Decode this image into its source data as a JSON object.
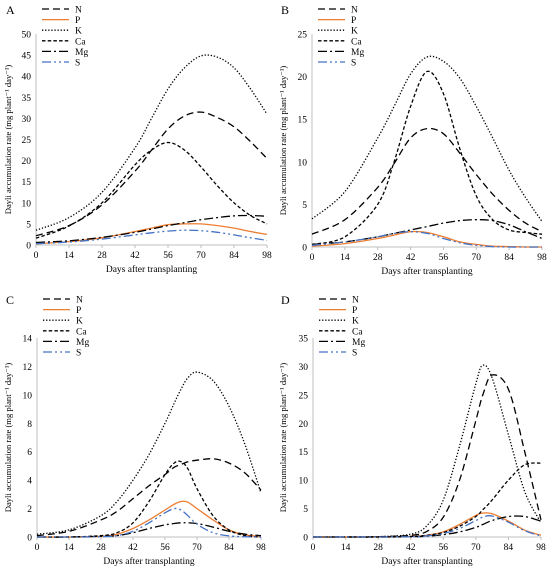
{
  "chart_data": [
    {
      "type": "line",
      "panel": "A",
      "xlabel": "Days after transplanting",
      "ylabel": "Dayli accumulation rate (mg plant⁻¹ day⁻¹)",
      "xlim": [
        0,
        98
      ],
      "ylim": [
        0,
        50
      ],
      "xticks": [
        0,
        14,
        28,
        42,
        56,
        70,
        84,
        98
      ],
      "yticks": [
        0,
        5,
        10,
        15,
        20,
        25,
        30,
        35,
        40,
        45,
        50
      ],
      "legend": "top-left",
      "x": [
        0,
        14,
        28,
        42,
        49,
        56,
        63,
        70,
        77,
        84,
        91,
        98
      ],
      "series": [
        {
          "name": "N",
          "values": [
            2.2,
            4.6,
            9.5,
            17.5,
            22.5,
            27.5,
            30.6,
            31.5,
            30.2,
            28.0,
            24.5,
            20.5
          ]
        },
        {
          "name": "P",
          "values": [
            0.3,
            0.8,
            1.7,
            3.2,
            4.0,
            4.8,
            5.0,
            5.0,
            4.6,
            4.0,
            3.2,
            2.5
          ]
        },
        {
          "name": "K",
          "values": [
            3.5,
            6.5,
            12.5,
            23.0,
            30.0,
            37.0,
            42.0,
            44.8,
            44.5,
            42.0,
            37.0,
            31.0
          ]
        },
        {
          "name": "Ca",
          "values": [
            1.6,
            4.5,
            10.0,
            19.0,
            22.5,
            24.3,
            22.5,
            18.5,
            14.0,
            10.0,
            7.0,
            5.0
          ]
        },
        {
          "name": "Mg",
          "values": [
            0.6,
            1.0,
            1.8,
            3.0,
            3.8,
            4.6,
            5.3,
            6.0,
            6.5,
            6.9,
            7.0,
            6.8
          ]
        },
        {
          "name": "S",
          "values": [
            0.3,
            0.7,
            1.4,
            2.4,
            2.9,
            3.3,
            3.5,
            3.4,
            3.0,
            2.4,
            1.7,
            1.1
          ]
        }
      ]
    },
    {
      "type": "line",
      "panel": "B",
      "xlabel": "Days after transplanting",
      "ylabel": "Dayli accumulation rate (mg plant⁻¹ day⁻¹)",
      "xlim": [
        0,
        98
      ],
      "ylim": [
        0,
        25
      ],
      "xticks": [
        0,
        14,
        28,
        42,
        56,
        70,
        84,
        98
      ],
      "yticks": [
        0,
        5,
        10,
        15,
        20,
        25
      ],
      "legend": "top-left",
      "x": [
        0,
        14,
        28,
        35,
        42,
        49,
        56,
        63,
        70,
        77,
        84,
        91,
        98
      ],
      "series": [
        {
          "name": "N",
          "values": [
            1.5,
            3.2,
            7.0,
            9.8,
            12.8,
            13.9,
            13.3,
            11.0,
            8.5,
            6.2,
            4.3,
            2.8,
            1.8
          ]
        },
        {
          "name": "P",
          "values": [
            0.1,
            0.4,
            1.0,
            1.4,
            1.8,
            1.7,
            1.2,
            0.6,
            0.3,
            0.1,
            0.05,
            0.0,
            0.0
          ]
        },
        {
          "name": "K",
          "values": [
            3.3,
            6.5,
            12.8,
            16.5,
            20.3,
            22.3,
            21.8,
            19.8,
            16.5,
            12.8,
            9.0,
            5.8,
            3.0
          ]
        },
        {
          "name": "Ca",
          "values": [
            0.3,
            1.2,
            5.0,
            10.0,
            16.5,
            20.6,
            18.0,
            11.5,
            6.0,
            3.2,
            2.0,
            1.7,
            1.5
          ]
        },
        {
          "name": "Mg",
          "values": [
            0.3,
            0.6,
            1.2,
            1.6,
            2.0,
            2.4,
            2.8,
            3.1,
            3.2,
            3.1,
            2.6,
            1.8,
            1.0
          ]
        },
        {
          "name": "S",
          "values": [
            0.2,
            0.6,
            1.2,
            1.6,
            1.8,
            1.6,
            1.0,
            0.5,
            0.2,
            0.05,
            0.0,
            0.0,
            0.0
          ]
        }
      ]
    },
    {
      "type": "line",
      "panel": "C",
      "xlabel": "Days after transplanting",
      "ylabel": "Dayli accumulation rate (mg plant⁻¹ day⁻¹)",
      "xlim": [
        0,
        98
      ],
      "ylim": [
        0,
        14
      ],
      "xticks": [
        0,
        14,
        28,
        42,
        56,
        70,
        84,
        98
      ],
      "yticks": [
        0,
        2,
        4,
        6,
        8,
        10,
        12,
        14
      ],
      "legend": "top-left",
      "x": [
        0,
        14,
        28,
        35,
        42,
        49,
        56,
        60,
        63,
        66,
        70,
        77,
        84,
        91,
        98
      ],
      "series": [
        {
          "name": "N",
          "values": [
            0.1,
            0.4,
            1.2,
            1.8,
            2.7,
            3.6,
            4.4,
            4.9,
            5.1,
            5.3,
            5.4,
            5.5,
            5.2,
            4.5,
            3.3
          ]
        },
        {
          "name": "P",
          "values": [
            0.0,
            0.0,
            0.05,
            0.2,
            0.6,
            1.2,
            1.9,
            2.3,
            2.5,
            2.45,
            2.0,
            1.2,
            0.5,
            0.15,
            0.05
          ]
        },
        {
          "name": "K",
          "values": [
            0.2,
            0.5,
            1.5,
            2.5,
            4.0,
            5.8,
            8.0,
            9.4,
            10.4,
            11.2,
            11.6,
            11.0,
            9.2,
            6.5,
            3.1
          ]
        },
        {
          "name": "Ca",
          "values": [
            0.0,
            0.0,
            0.1,
            0.3,
            1.0,
            2.5,
            4.4,
            5.2,
            5.3,
            4.8,
            3.4,
            1.5,
            0.5,
            0.1,
            0.0
          ]
        },
        {
          "name": "Mg",
          "values": [
            0.0,
            0.0,
            0.05,
            0.1,
            0.3,
            0.6,
            0.85,
            0.95,
            1.0,
            1.0,
            0.95,
            0.7,
            0.4,
            0.2,
            0.1
          ]
        },
        {
          "name": "S",
          "values": [
            0.0,
            0.0,
            0.02,
            0.1,
            0.4,
            1.0,
            1.7,
            2.0,
            1.9,
            1.5,
            0.9,
            0.3,
            0.08,
            0.02,
            0.0
          ]
        }
      ]
    },
    {
      "type": "line",
      "panel": "D",
      "xlabel": "Days after transplanting",
      "ylabel": "Dayli accumulation rate (mg plant⁻¹ day⁻¹)",
      "xlim": [
        0,
        98
      ],
      "ylim": [
        0,
        35
      ],
      "xticks": [
        0,
        14,
        28,
        42,
        56,
        70,
        84,
        98
      ],
      "yticks": [
        0,
        5,
        10,
        15,
        20,
        25,
        30,
        35
      ],
      "legend": "top-left",
      "x": [
        0,
        14,
        28,
        42,
        49,
        56,
        63,
        70,
        73,
        77,
        84,
        91,
        98
      ],
      "series": [
        {
          "name": "N",
          "values": [
            0.0,
            0.0,
            0.05,
            0.3,
            1.0,
            3.5,
            10.0,
            20.5,
            25.0,
            28.5,
            26.0,
            15.0,
            3.0
          ]
        },
        {
          "name": "P",
          "values": [
            0.0,
            0.0,
            0.0,
            0.1,
            0.3,
            0.9,
            2.2,
            3.8,
            4.2,
            4.1,
            2.8,
            1.2,
            0.3
          ]
        },
        {
          "name": "K",
          "values": [
            0.0,
            0.0,
            0.05,
            0.5,
            2.0,
            6.5,
            16.0,
            27.0,
            30.2,
            28.0,
            18.0,
            8.0,
            2.5
          ]
        },
        {
          "name": "Ca",
          "values": [
            0.0,
            0.0,
            0.0,
            0.1,
            0.3,
            0.8,
            1.9,
            3.6,
            4.8,
            6.5,
            10.0,
            12.7,
            13.0
          ]
        },
        {
          "name": "Mg",
          "values": [
            0.0,
            0.0,
            0.0,
            0.05,
            0.15,
            0.4,
            0.9,
            1.7,
            2.2,
            2.9,
            3.6,
            3.6,
            2.8
          ]
        },
        {
          "name": "S",
          "values": [
            0.0,
            0.0,
            0.0,
            0.05,
            0.2,
            0.6,
            1.5,
            2.9,
            3.5,
            3.7,
            2.6,
            1.1,
            0.2
          ]
        }
      ]
    }
  ],
  "series_styles": {
    "N": {
      "color": "#000000",
      "dash": "7,4"
    },
    "P": {
      "color": "#ED7D31",
      "dash": ""
    },
    "K": {
      "color": "#000000",
      "dash": "1.3,1.8"
    },
    "Ca": {
      "color": "#000000",
      "dash": "3.5,2.2"
    },
    "Mg": {
      "color": "#000000",
      "dash": "9,3,2,3"
    },
    "S": {
      "color": "#4472C4",
      "dash": "9,3,2,3,2,3"
    }
  },
  "axis_color": "#bfbfbf"
}
